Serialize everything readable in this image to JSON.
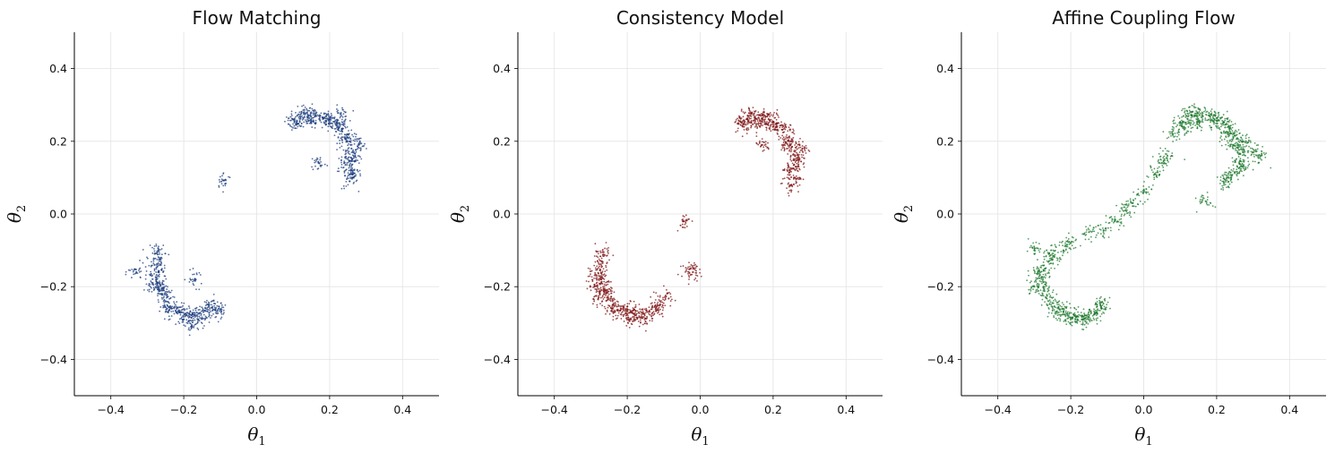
{
  "chart_data": [
    {
      "type": "scatter",
      "title": "Flow Matching",
      "xlabel": "θ",
      "xlabel_sub": "1",
      "ylabel": "θ",
      "ylabel_sub": "2",
      "xlim": [
        -0.5,
        0.5
      ],
      "ylim": [
        -0.5,
        0.5
      ],
      "xticks": [
        -0.4,
        -0.2,
        0.0,
        0.2,
        0.4
      ],
      "xtick_labels": [
        "−0.4",
        "−0.2",
        "0.0",
        "0.2",
        "0.4"
      ],
      "yticks": [
        -0.4,
        -0.2,
        0.0,
        0.2,
        0.4
      ],
      "ytick_labels": [
        "−0.4",
        "−0.2",
        "0.0",
        "0.2",
        "0.4"
      ],
      "grid": true,
      "color": "#1f3f7f",
      "points": [
        [
          0.1,
          0.26
        ],
        [
          0.12,
          0.262
        ],
        [
          0.14,
          0.266
        ],
        [
          0.16,
          0.268
        ],
        [
          0.18,
          0.266
        ],
        [
          0.2,
          0.26
        ],
        [
          0.22,
          0.25
        ],
        [
          0.235,
          0.235
        ],
        [
          0.25,
          0.21
        ],
        [
          0.26,
          0.18
        ],
        [
          0.262,
          0.15
        ],
        [
          0.258,
          0.12
        ],
        [
          0.255,
          0.09
        ],
        [
          0.11,
          0.248
        ],
        [
          0.15,
          0.255
        ],
        [
          0.19,
          0.254
        ],
        [
          0.225,
          0.238
        ],
        [
          0.245,
          0.205
        ],
        [
          0.27,
          0.16
        ],
        [
          0.24,
          0.14
        ],
        [
          0.23,
          0.275
        ],
        [
          0.13,
          0.28
        ],
        [
          0.28,
          0.19
        ],
        [
          0.265,
          0.11
        ],
        [
          0.17,
          0.14
        ],
        [
          -0.09,
          0.092
        ],
        [
          -0.27,
          -0.16
        ],
        [
          -0.275,
          -0.18
        ],
        [
          -0.27,
          -0.2
        ],
        [
          -0.262,
          -0.22
        ],
        [
          -0.25,
          -0.24
        ],
        [
          -0.235,
          -0.257
        ],
        [
          -0.215,
          -0.268
        ],
        [
          -0.195,
          -0.274
        ],
        [
          -0.175,
          -0.276
        ],
        [
          -0.155,
          -0.272
        ],
        [
          -0.135,
          -0.268
        ],
        [
          -0.115,
          -0.264
        ],
        [
          -0.1,
          -0.262
        ],
        [
          -0.28,
          -0.14
        ],
        [
          -0.265,
          -0.125
        ],
        [
          -0.27,
          -0.1
        ],
        [
          -0.285,
          -0.19
        ],
        [
          -0.255,
          -0.21
        ],
        [
          -0.24,
          -0.265
        ],
        [
          -0.2,
          -0.29
        ],
        [
          -0.16,
          -0.29
        ],
        [
          -0.13,
          -0.25
        ],
        [
          -0.17,
          -0.18
        ],
        [
          -0.33,
          -0.16
        ],
        [
          -0.18,
          -0.31
        ]
      ]
    },
    {
      "type": "scatter",
      "title": "Consistency Model",
      "xlabel": "θ",
      "xlabel_sub": "1",
      "ylabel": "θ",
      "ylabel_sub": "2",
      "xlim": [
        -0.5,
        0.5
      ],
      "ylim": [
        -0.5,
        0.5
      ],
      "xticks": [
        -0.4,
        -0.2,
        0.0,
        0.2,
        0.4
      ],
      "xtick_labels": [
        "−0.4",
        "−0.2",
        "0.0",
        "0.2",
        "0.4"
      ],
      "yticks": [
        -0.4,
        -0.2,
        0.0,
        0.2,
        0.4
      ],
      "ytick_labels": [
        "−0.4",
        "−0.2",
        "0.0",
        "0.2",
        "0.4"
      ],
      "grid": true,
      "color": "#7f1414",
      "points": [
        [
          0.11,
          0.255
        ],
        [
          0.13,
          0.26
        ],
        [
          0.15,
          0.264
        ],
        [
          0.17,
          0.264
        ],
        [
          0.19,
          0.258
        ],
        [
          0.21,
          0.248
        ],
        [
          0.225,
          0.232
        ],
        [
          0.24,
          0.21
        ],
        [
          0.252,
          0.185
        ],
        [
          0.26,
          0.16
        ],
        [
          0.262,
          0.13
        ],
        [
          0.258,
          0.1
        ],
        [
          0.12,
          0.24
        ],
        [
          0.16,
          0.25
        ],
        [
          0.2,
          0.24
        ],
        [
          0.235,
          0.195
        ],
        [
          0.27,
          0.15
        ],
        [
          0.245,
          0.12
        ],
        [
          0.28,
          0.18
        ],
        [
          0.14,
          0.275
        ],
        [
          0.185,
          0.275
        ],
        [
          0.25,
          0.08
        ],
        [
          0.17,
          0.19
        ],
        [
          -0.045,
          -0.02
        ],
        [
          -0.03,
          -0.152
        ],
        [
          -0.02,
          -0.16
        ],
        [
          -0.27,
          -0.13
        ],
        [
          -0.275,
          -0.155
        ],
        [
          -0.272,
          -0.18
        ],
        [
          -0.265,
          -0.205
        ],
        [
          -0.255,
          -0.23
        ],
        [
          -0.24,
          -0.25
        ],
        [
          -0.22,
          -0.266
        ],
        [
          -0.2,
          -0.275
        ],
        [
          -0.18,
          -0.276
        ],
        [
          -0.16,
          -0.272
        ],
        [
          -0.14,
          -0.268
        ],
        [
          -0.12,
          -0.264
        ],
        [
          -0.265,
          -0.105
        ],
        [
          -0.285,
          -0.17
        ],
        [
          -0.26,
          -0.21
        ],
        [
          -0.235,
          -0.27
        ],
        [
          -0.19,
          -0.29
        ],
        [
          -0.15,
          -0.288
        ],
        [
          -0.11,
          -0.25
        ],
        [
          -0.29,
          -0.2
        ],
        [
          -0.2,
          -0.255
        ],
        [
          -0.095,
          -0.225
        ],
        [
          -0.28,
          -0.235
        ]
      ]
    },
    {
      "type": "scatter",
      "title": "Affine Coupling Flow",
      "xlabel": "θ",
      "xlabel_sub": "1",
      "ylabel": "θ",
      "ylabel_sub": "2",
      "xlim": [
        -0.5,
        0.5
      ],
      "ylim": [
        -0.5,
        0.5
      ],
      "xticks": [
        -0.4,
        -0.2,
        0.0,
        0.2,
        0.4
      ],
      "xtick_labels": [
        "−0.4",
        "−0.2",
        "0.0",
        "0.2",
        "0.4"
      ],
      "yticks": [
        -0.4,
        -0.2,
        0.0,
        0.2,
        0.4
      ],
      "ytick_labels": [
        "−0.4",
        "−0.2",
        "0.0",
        "0.2",
        "0.4"
      ],
      "grid": true,
      "color": "#1e7a2e",
      "points": [
        [
          0.08,
          0.22
        ],
        [
          0.1,
          0.25
        ],
        [
          0.12,
          0.262
        ],
        [
          0.14,
          0.27
        ],
        [
          0.16,
          0.272
        ],
        [
          0.18,
          0.27
        ],
        [
          0.2,
          0.264
        ],
        [
          0.22,
          0.252
        ],
        [
          0.235,
          0.235
        ],
        [
          0.25,
          0.215
        ],
        [
          0.26,
          0.19
        ],
        [
          0.265,
          0.165
        ],
        [
          0.262,
          0.14
        ],
        [
          0.25,
          0.115
        ],
        [
          0.11,
          0.24
        ],
        [
          0.15,
          0.255
        ],
        [
          0.19,
          0.255
        ],
        [
          0.225,
          0.225
        ],
        [
          0.245,
          0.19
        ],
        [
          0.28,
          0.2
        ],
        [
          0.3,
          0.17
        ],
        [
          0.27,
          0.13
        ],
        [
          0.23,
          0.1
        ],
        [
          0.13,
          0.28
        ],
        [
          0.32,
          0.16
        ],
        [
          0.22,
          0.085
        ],
        [
          0.065,
          0.16
        ],
        [
          0.17,
          0.035
        ],
        [
          0.05,
          0.14
        ],
        [
          0.03,
          0.11
        ],
        [
          0.0,
          0.06
        ],
        [
          -0.03,
          0.03
        ],
        [
          -0.05,
          0.01
        ],
        [
          -0.08,
          -0.02
        ],
        [
          -0.11,
          -0.045
        ],
        [
          -0.15,
          -0.05
        ],
        [
          -0.2,
          -0.08
        ],
        [
          -0.22,
          -0.1
        ],
        [
          -0.25,
          -0.125
        ],
        [
          -0.27,
          -0.15
        ],
        [
          -0.28,
          -0.175
        ],
        [
          -0.275,
          -0.2
        ],
        [
          -0.265,
          -0.225
        ],
        [
          -0.25,
          -0.245
        ],
        [
          -0.23,
          -0.262
        ],
        [
          -0.21,
          -0.274
        ],
        [
          -0.19,
          -0.28
        ],
        [
          -0.17,
          -0.282
        ],
        [
          -0.15,
          -0.278
        ],
        [
          -0.13,
          -0.27
        ],
        [
          -0.115,
          -0.26
        ],
        [
          -0.29,
          -0.16
        ],
        [
          -0.3,
          -0.2
        ],
        [
          -0.24,
          -0.27
        ],
        [
          -0.2,
          -0.29
        ],
        [
          -0.16,
          -0.295
        ],
        [
          -0.12,
          -0.245
        ],
        [
          -0.26,
          -0.11
        ],
        [
          -0.3,
          -0.1
        ]
      ]
    }
  ]
}
